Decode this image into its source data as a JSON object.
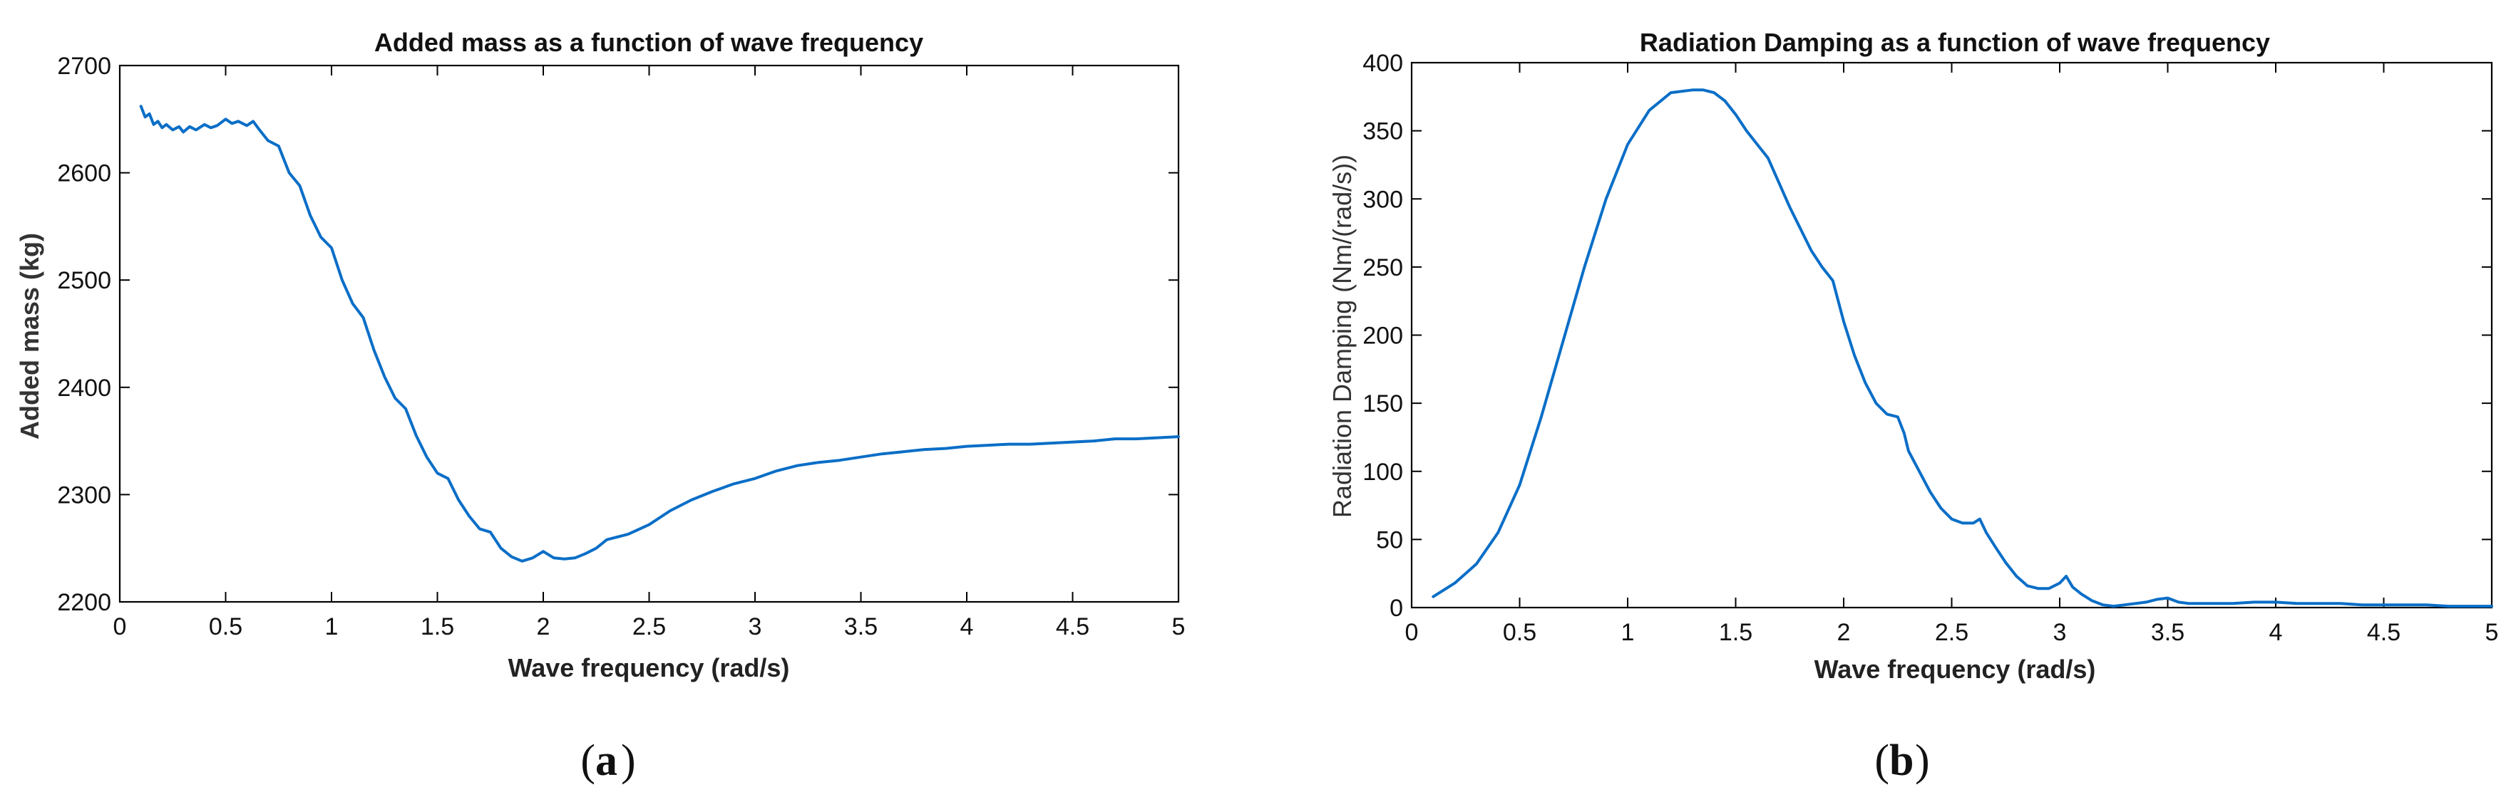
{
  "chart_data": [
    {
      "type": "line",
      "title": "Added mass as a function of wave frequency",
      "xlabel": "Wave frequency (rad/s)",
      "ylabel": "Added mass (kg)",
      "xlim": [
        0,
        5
      ],
      "ylim": [
        2200,
        2700
      ],
      "xticks": [
        0,
        0.5,
        1,
        1.5,
        2,
        2.5,
        3,
        3.5,
        4,
        4.5,
        5
      ],
      "xtick_labels": [
        "0",
        "0.5",
        "1",
        "1.5",
        "2",
        "2.5",
        "3",
        "3.5",
        "4",
        "4.5",
        "5"
      ],
      "yticks": [
        2200,
        2300,
        2400,
        2500,
        2600,
        2700
      ],
      "ytick_labels": [
        "2200",
        "2300",
        "2400",
        "2500",
        "2600",
        "2700"
      ],
      "panel_label": "a",
      "series": [
        {
          "color": "#0a6ec7",
          "x": [
            0.1,
            0.12,
            0.14,
            0.16,
            0.18,
            0.2,
            0.22,
            0.25,
            0.28,
            0.3,
            0.33,
            0.36,
            0.4,
            0.43,
            0.46,
            0.5,
            0.53,
            0.56,
            0.6,
            0.63,
            0.66,
            0.7,
            0.75,
            0.8,
            0.85,
            0.9,
            0.95,
            1.0,
            1.05,
            1.1,
            1.15,
            1.2,
            1.25,
            1.3,
            1.35,
            1.4,
            1.45,
            1.5,
            1.55,
            1.6,
            1.65,
            1.7,
            1.75,
            1.8,
            1.85,
            1.9,
            1.95,
            2.0,
            2.05,
            2.1,
            2.15,
            2.2,
            2.25,
            2.3,
            2.4,
            2.5,
            2.6,
            2.7,
            2.8,
            2.9,
            3.0,
            3.1,
            3.2,
            3.3,
            3.4,
            3.5,
            3.6,
            3.7,
            3.8,
            3.9,
            4.0,
            4.1,
            4.2,
            4.3,
            4.4,
            4.5,
            4.6,
            4.7,
            4.8,
            4.9,
            5.0
          ],
          "y": [
            2662,
            2652,
            2655,
            2645,
            2648,
            2642,
            2645,
            2640,
            2643,
            2638,
            2643,
            2640,
            2645,
            2642,
            2644,
            2650,
            2646,
            2648,
            2644,
            2648,
            2640,
            2630,
            2625,
            2600,
            2588,
            2560,
            2540,
            2530,
            2500,
            2478,
            2465,
            2435,
            2410,
            2390,
            2380,
            2355,
            2335,
            2320,
            2315,
            2295,
            2280,
            2268,
            2265,
            2250,
            2242,
            2238,
            2241,
            2247,
            2241,
            2240,
            2241,
            2245,
            2250,
            2258,
            2263,
            2272,
            2285,
            2295,
            2303,
            2310,
            2315,
            2322,
            2327,
            2330,
            2332,
            2335,
            2338,
            2340,
            2342,
            2343,
            2345,
            2346,
            2347,
            2347,
            2348,
            2349,
            2350,
            2352,
            2352,
            2353,
            2354
          ]
        }
      ]
    },
    {
      "type": "line",
      "title": "Radiation Damping as a function of wave frequency",
      "xlabel": "Wave frequency (rad/s)",
      "ylabel": "Radiation Damping (Nm/(rad/s))",
      "xlim": [
        0,
        5
      ],
      "ylim": [
        0,
        400
      ],
      "xticks": [
        0,
        0.5,
        1,
        1.5,
        2,
        2.5,
        3,
        3.5,
        4,
        4.5,
        5
      ],
      "xtick_labels": [
        "0",
        "0.5",
        "1",
        "1.5",
        "2",
        "2.5",
        "3",
        "3.5",
        "4",
        "4.5",
        "5"
      ],
      "yticks": [
        0,
        50,
        100,
        150,
        200,
        250,
        300,
        350,
        400
      ],
      "ytick_labels": [
        "0",
        "50",
        "100",
        "150",
        "200",
        "250",
        "300",
        "350",
        "400"
      ],
      "panel_label": "b",
      "series": [
        {
          "color": "#0a6ec7",
          "x": [
            0.1,
            0.2,
            0.3,
            0.4,
            0.5,
            0.6,
            0.7,
            0.8,
            0.9,
            1.0,
            1.1,
            1.2,
            1.3,
            1.35,
            1.4,
            1.45,
            1.5,
            1.55,
            1.6,
            1.65,
            1.7,
            1.75,
            1.8,
            1.85,
            1.9,
            1.95,
            2.0,
            2.05,
            2.1,
            2.15,
            2.2,
            2.25,
            2.28,
            2.3,
            2.35,
            2.4,
            2.45,
            2.5,
            2.55,
            2.6,
            2.63,
            2.66,
            2.7,
            2.75,
            2.8,
            2.85,
            2.9,
            2.95,
            3.0,
            3.03,
            3.06,
            3.1,
            3.15,
            3.2,
            3.25,
            3.3,
            3.35,
            3.4,
            3.45,
            3.5,
            3.55,
            3.6,
            3.7,
            3.8,
            3.9,
            4.0,
            4.1,
            4.2,
            4.3,
            4.4,
            4.5,
            4.6,
            4.7,
            4.8,
            4.9,
            5.0
          ],
          "y": [
            8,
            18,
            32,
            55,
            90,
            140,
            195,
            250,
            300,
            340,
            365,
            378,
            380,
            380,
            378,
            372,
            362,
            350,
            340,
            330,
            312,
            294,
            278,
            262,
            250,
            240,
            210,
            185,
            165,
            150,
            142,
            140,
            128,
            115,
            100,
            85,
            73,
            65,
            62,
            62,
            65,
            55,
            45,
            33,
            23,
            16,
            14,
            14,
            18,
            23,
            15,
            10,
            5,
            2,
            1,
            2,
            3,
            4,
            6,
            7,
            4,
            3,
            3,
            3,
            4,
            4,
            3,
            3,
            3,
            2,
            2,
            2,
            2,
            1,
            1,
            1
          ]
        }
      ]
    }
  ]
}
